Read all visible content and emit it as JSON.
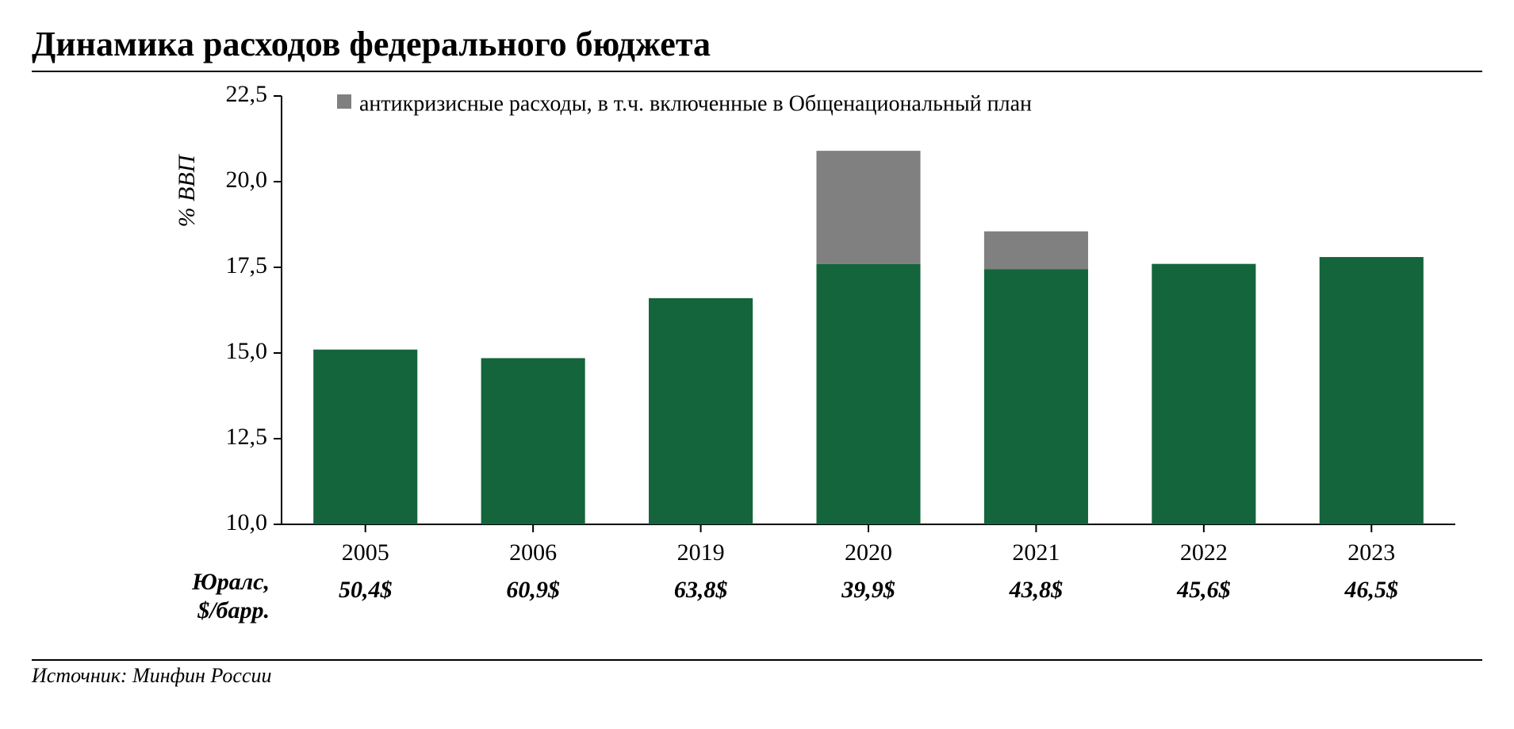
{
  "title": "Динамика расходов федерального бюджета",
  "source": "Источник: Минфин России",
  "chart": {
    "type": "stacked-bar",
    "y_axis_label": "% ВВП",
    "y_axis_label_fontsize": 30,
    "tick_fontsize": 30,
    "category_fontsize": 30,
    "price_fontsize": 30,
    "legend_fontsize": 28,
    "ylim_min": 10.0,
    "ylim_max": 22.5,
    "ytick_step": 2.5,
    "yticks": [
      "10,0",
      "12,5",
      "15,0",
      "17,5",
      "20,0",
      "22,5"
    ],
    "categories": [
      "2005",
      "2006",
      "2019",
      "2020",
      "2021",
      "2022",
      "2023"
    ],
    "series": {
      "base": {
        "color": "#14653b",
        "values": [
          15.1,
          14.85,
          16.6,
          17.6,
          17.45,
          17.6,
          17.8
        ]
      },
      "crisis": {
        "color": "#808080",
        "values": [
          0,
          0,
          0,
          3.3,
          1.1,
          0,
          0
        ],
        "legend_label": "антикризисные расходы, в т.ч. включенные в Общенациональный план"
      }
    },
    "bar_width_ratio": 0.62,
    "axis_color": "#000000",
    "axis_width": 2,
    "tick_length": 10,
    "background_color": "#ffffff",
    "bottom_row": {
      "label_line1": "Юралс,",
      "label_line2": "$/барр.",
      "values": [
        "50,4$",
        "60,9$",
        "63,8$",
        "39,9$",
        "43,8$",
        "45,6$",
        "46,5$"
      ]
    }
  }
}
